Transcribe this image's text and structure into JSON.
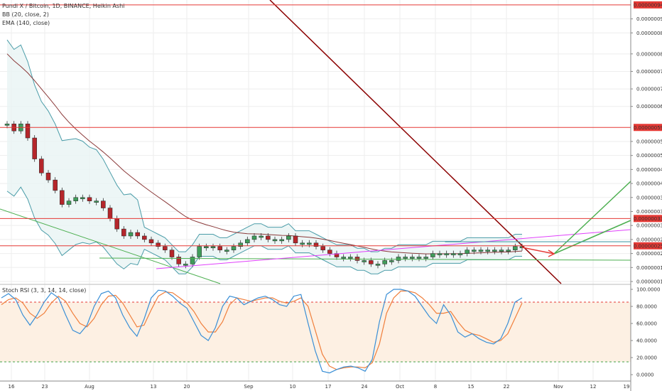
{
  "chart_data": {
    "type": "candlestick",
    "title": "Pundi X / Bitcoin, 1D, BINANCE, Heikin Ashi",
    "indicators": {
      "bb": "BB (20, close, 2)",
      "ema": "EMA (140, close)",
      "stoch": "Stoch RSI (3, 3, 14, 14, close)"
    },
    "price_axis": {
      "ticks": [
        "0.00000090",
        "0.00000086",
        "0.00000080",
        "0.00000075",
        "0.00000070",
        "0.00000065",
        "0.00000055",
        "0.00000051",
        "0.00000047",
        "0.00000043",
        "0.00000039",
        "0.00000035",
        "0.00000031",
        "0.00000027",
        "0.00000023",
        "0.00000019",
        "0.00000015"
      ],
      "ylim": [
        1.5e-07,
        9.6e-07
      ]
    },
    "price_levels": [
      {
        "label": "0.00000094",
        "value": 9.4e-07,
        "color": "#e53935"
      },
      {
        "label": "0.00000059",
        "value": 5.9e-07,
        "color": "#e53935"
      },
      {
        "label": "0.00000033",
        "value": 3.3e-07,
        "color": "#e53935"
      },
      {
        "label": "0.00000025",
        "value": 2.52e-07,
        "color": "#e53935"
      }
    ],
    "x_axis": {
      "ticks": [
        "16",
        "23",
        "Aug",
        "13",
        "20",
        "Sep",
        "10",
        "17",
        "24",
        "Oct",
        "8",
        "15",
        "22",
        "Nov",
        "12",
        "19"
      ]
    },
    "candles": [
      6e-07,
      5.8e-07,
      6e-07,
      5.6e-07,
      5e-07,
      4.6e-07,
      4.4e-07,
      4.1e-07,
      3.7e-07,
      3.8e-07,
      3.9e-07,
      3.9e-07,
      3.8e-07,
      3.8e-07,
      3.6e-07,
      3.3e-07,
      3e-07,
      2.8e-07,
      2.9e-07,
      2.8e-07,
      2.7e-07,
      2.6e-07,
      2.5e-07,
      2.4e-07,
      2.2e-07,
      2e-07,
      2e-07,
      2.2e-07,
      2.5e-07,
      2.5e-07,
      2.5e-07,
      2.4e-07,
      2.4e-07,
      2.5e-07,
      2.6e-07,
      2.7e-07,
      2.8e-07,
      2.8e-07,
      2.7e-07,
      2.7e-07,
      2.7e-07,
      2.8e-07,
      2.6e-07,
      2.6e-07,
      2.6e-07,
      2.5e-07,
      2.4e-07,
      2.3e-07,
      2.2e-07,
      2.2e-07,
      2.2e-07,
      2.1e-07,
      2.1e-07,
      2e-07,
      2e-07,
      2.1e-07,
      2.1e-07,
      2.2e-07,
      2.2e-07,
      2.2e-07,
      2.2e-07,
      2.2e-07,
      2.3e-07,
      2.3e-07,
      2.3e-07,
      2.3e-07,
      2.3e-07,
      2.4e-07,
      2.4e-07,
      2.4e-07,
      2.4e-07,
      2.4e-07,
      2.4e-07,
      2.4e-07,
      2.5e-07,
      2.5e-07
    ],
    "stoch_axis": {
      "ticks": [
        "100.0000",
        "80.0000",
        "60.0000",
        "40.0000",
        "20.0000",
        "0.0000"
      ]
    },
    "stoch_bands": [
      85,
      15
    ],
    "stoch_k": [
      90,
      95,
      88,
      70,
      58,
      70,
      85,
      96,
      90,
      70,
      52,
      48,
      58,
      80,
      95,
      98,
      90,
      70,
      55,
      45,
      65,
      90,
      99,
      98,
      92,
      84,
      78,
      62,
      46,
      40,
      55,
      80,
      92,
      90,
      82,
      86,
      90,
      92,
      88,
      82,
      80,
      92,
      94,
      60,
      28,
      4,
      2,
      6,
      9,
      10,
      8,
      4,
      18,
      62,
      94,
      100,
      100,
      98,
      92,
      80,
      68,
      60,
      82,
      70,
      50,
      44,
      48,
      42,
      38,
      36,
      42,
      60,
      85,
      90
    ],
    "stoch_d": [
      82,
      88,
      90,
      84,
      72,
      66,
      72,
      84,
      92,
      86,
      72,
      60,
      56,
      66,
      82,
      92,
      93,
      84,
      70,
      56,
      58,
      76,
      92,
      97,
      96,
      90,
      84,
      74,
      60,
      50,
      50,
      62,
      82,
      90,
      88,
      86,
      88,
      90,
      90,
      86,
      84,
      86,
      90,
      80,
      52,
      24,
      10,
      6,
      8,
      9,
      9,
      8,
      14,
      36,
      72,
      90,
      98,
      98,
      96,
      90,
      82,
      72,
      72,
      74,
      62,
      52,
      48,
      46,
      42,
      38,
      40,
      48,
      66,
      84
    ]
  }
}
